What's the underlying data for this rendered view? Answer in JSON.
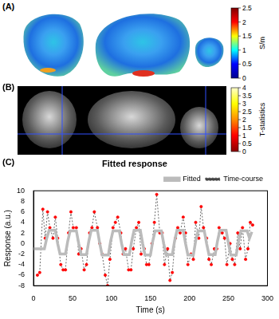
{
  "panels": [
    {
      "panel_label": "(A)",
      "colorbar": {
        "range": [
          0,
          2.5
        ],
        "ticks": [
          0,
          0.5,
          1,
          1.5,
          2,
          2.5
        ],
        "label": "S/m"
      }
    },
    {
      "panel_label": "(B)",
      "colorbar": {
        "range": [
          0,
          4
        ],
        "ticks": [
          0,
          0.5,
          1,
          1.5,
          2,
          2.5,
          3,
          3.5,
          4
        ],
        "label": "T-statistics"
      }
    }
  ],
  "chart_data": {
    "panel_label": "(C)",
    "type": "line",
    "title": "Fitted response",
    "x_label": "Time (s)",
    "y_label": "Response (a.u.)",
    "xlim": [
      0,
      300
    ],
    "xticks": [
      0,
      50,
      100,
      150,
      200,
      250,
      300
    ],
    "ylim": [
      -8,
      10
    ],
    "yticks": [
      -8,
      -6,
      -4,
      -2,
      0,
      2,
      4,
      6,
      8,
      10
    ],
    "grid": false,
    "legend": "top-right",
    "series": [
      {
        "name": "Fitted",
        "color": "#bbbbbb",
        "line_style": "solid",
        "marker": "none",
        "x": [
          0,
          14,
          17,
          20,
          28,
          31,
          34,
          41,
          44,
          47,
          55,
          58,
          61,
          68,
          71,
          74,
          82,
          85,
          88,
          96,
          99,
          102,
          110,
          113,
          116,
          123,
          126,
          129,
          137,
          140,
          143,
          150,
          153,
          156,
          164,
          167,
          170,
          178,
          181,
          184,
          192,
          195,
          198,
          205,
          208,
          211,
          219,
          222,
          225,
          233,
          236,
          239,
          247,
          250,
          253,
          260,
          263,
          266,
          274,
          277,
          280
        ],
        "values": [
          -1,
          -1,
          1,
          2.5,
          2.5,
          0,
          -2,
          -2,
          0.5,
          2.4,
          2.4,
          0,
          -2.1,
          -2.1,
          0.5,
          2.5,
          2.5,
          0,
          -2.2,
          -2.2,
          0.5,
          2.4,
          2.4,
          0,
          -2.1,
          -2.1,
          0.5,
          2.5,
          2.5,
          0,
          -2.2,
          -2.2,
          0.5,
          2.4,
          2.4,
          0,
          -2.1,
          -2.1,
          0.5,
          2.5,
          2.5,
          0,
          -2.2,
          -2.2,
          0.5,
          2.4,
          2.4,
          0,
          -2.1,
          -2.1,
          0.5,
          2.5,
          2.5,
          0,
          -2.2,
          -2.2,
          0.5,
          2.4,
          2.4,
          1,
          2.2
        ]
      },
      {
        "name": "Time-course",
        "color": "#444444",
        "line_style": "dotted",
        "marker": "point",
        "x": [
          5,
          8,
          12,
          15,
          18,
          21,
          25,
          28,
          31,
          35,
          38,
          41,
          45,
          48,
          51,
          55,
          58,
          61,
          65,
          68,
          72,
          75,
          78,
          82,
          85,
          88,
          92,
          95,
          98,
          102,
          105,
          108,
          112,
          115,
          118,
          122,
          125,
          128,
          132,
          135,
          138,
          142,
          145,
          148,
          152,
          155,
          158,
          162,
          165,
          168,
          172,
          175,
          178,
          182,
          185,
          188,
          192,
          195,
          198,
          202,
          205,
          208,
          212,
          215,
          218,
          222,
          225,
          228,
          232,
          235,
          238,
          242,
          245,
          248,
          252,
          255,
          258,
          262,
          265,
          268,
          272,
          275,
          278,
          281
        ],
        "values": [
          -6,
          -5.5,
          6.5,
          1,
          6,
          3,
          1,
          5,
          1,
          -4,
          -5,
          -5,
          2,
          6,
          3,
          3,
          -2,
          -1,
          -5,
          -4,
          2,
          3,
          6,
          3,
          0,
          -2,
          -6,
          -8,
          -3,
          3,
          4,
          5,
          2,
          -2,
          -1,
          -5,
          -5,
          -1,
          3,
          4,
          -2,
          -1,
          -4,
          -4,
          0,
          4,
          9.3,
          2,
          2,
          -4,
          -1,
          -7,
          -5.5,
          1,
          3,
          2,
          5,
          2,
          -4,
          -2,
          -3,
          4,
          1,
          7,
          3,
          1,
          -3,
          -4,
          -1,
          -1,
          3,
          2,
          1,
          -4,
          0,
          -3,
          -4,
          2,
          -1,
          3,
          -3,
          -1,
          4,
          3.5
        ]
      }
    ]
  }
}
